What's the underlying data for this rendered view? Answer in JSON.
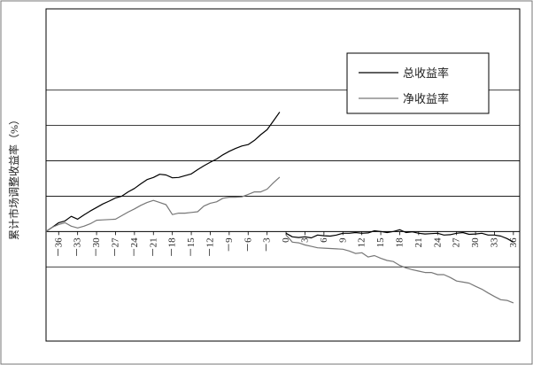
{
  "chart_data": {
    "type": "line",
    "title": "",
    "xlabel": "",
    "ylabel": "累计市场调整收益率（%）",
    "xlim": [
      -38,
      37
    ],
    "ylim": [
      -3.1,
      6.3
    ],
    "grid": "horizontal",
    "gridlines": [
      -1,
      1,
      2,
      3,
      4
    ],
    "legend_position": "top-right",
    "x_ticks": [
      -36,
      -33,
      -30,
      -27,
      -24,
      -21,
      -18,
      -15,
      -12,
      -9,
      -6,
      -3,
      0,
      3,
      6,
      9,
      12,
      15,
      18,
      21,
      24,
      27,
      30,
      33,
      36
    ],
    "x_tick_labels": [
      "－36",
      "－33",
      "－30",
      "－27",
      "－24",
      "－21",
      "－18",
      "－15",
      "－12",
      "－9",
      "－6",
      "－3",
      "0",
      "3",
      "6",
      "9",
      "12",
      "15",
      "18",
      "21",
      "24",
      "27",
      "30",
      "33",
      "36"
    ],
    "series": [
      {
        "name": "总收益率",
        "color": "#000000",
        "segments": [
          {
            "x": [
              -38,
              -37,
              -36,
              -35,
              -34,
              -33,
              -32,
              -31,
              -30,
              -29,
              -28,
              -27,
              -26,
              -25,
              -24,
              -23,
              -22,
              -21,
              -20,
              -19,
              -18,
              -17,
              -16,
              -15,
              -14,
              -13,
              -12,
              -11,
              -10,
              -9,
              -8,
              -7,
              -6,
              -5,
              -4,
              -3,
              -2,
              -1
            ],
            "y": [
              0.0,
              0.12,
              0.25,
              0.3,
              0.43,
              0.35,
              0.47,
              0.58,
              0.68,
              0.78,
              0.86,
              0.95,
              1.0,
              1.12,
              1.22,
              1.35,
              1.47,
              1.53,
              1.62,
              1.6,
              1.52,
              1.53,
              1.58,
              1.63,
              1.75,
              1.86,
              1.96,
              2.05,
              2.17,
              2.27,
              2.35,
              2.42,
              2.46,
              2.58,
              2.74,
              2.88,
              3.13,
              3.38
            ]
          },
          {
            "x": [
              0,
              1,
              2,
              3,
              4,
              5,
              6,
              7,
              8,
              9,
              10,
              11,
              12,
              13,
              14,
              15,
              16,
              17,
              18,
              19,
              20,
              21,
              22,
              23,
              24,
              25,
              26,
              27,
              28,
              29,
              30,
              31,
              32,
              33,
              34,
              35,
              36
            ],
            "y": [
              -0.05,
              -0.15,
              -0.17,
              -0.15,
              -0.18,
              -0.1,
              -0.12,
              -0.13,
              -0.1,
              -0.05,
              -0.05,
              -0.03,
              -0.05,
              -0.04,
              0.02,
              0.0,
              -0.03,
              0.0,
              0.05,
              -0.03,
              -0.01,
              -0.05,
              -0.07,
              -0.06,
              -0.05,
              -0.1,
              -0.09,
              -0.05,
              -0.03,
              -0.08,
              -0.07,
              -0.05,
              -0.1,
              -0.1,
              -0.13,
              -0.2,
              -0.3
            ]
          }
        ]
      },
      {
        "name": "净收益率",
        "color": "#777777",
        "segments": [
          {
            "x": [
              -38,
              -37,
              -36,
              -35,
              -34,
              -33,
              -32,
              -31,
              -30,
              -29,
              -28,
              -27,
              -26,
              -25,
              -24,
              -23,
              -22,
              -21,
              -20,
              -19,
              -18,
              -17,
              -16,
              -15,
              -14,
              -13,
              -12,
              -11,
              -10,
              -9,
              -8,
              -7,
              -6,
              -5,
              -4,
              -3,
              -2,
              -1
            ],
            "y": [
              0.0,
              0.12,
              0.2,
              0.25,
              0.15,
              0.1,
              0.15,
              0.22,
              0.32,
              0.33,
              0.34,
              0.35,
              0.45,
              0.55,
              0.64,
              0.74,
              0.82,
              0.88,
              0.82,
              0.76,
              0.48,
              0.52,
              0.52,
              0.54,
              0.56,
              0.72,
              0.8,
              0.84,
              0.94,
              0.97,
              0.97,
              0.98,
              1.05,
              1.12,
              1.12,
              1.2,
              1.38,
              1.54
            ]
          },
          {
            "x": [
              0,
              1,
              2,
              3,
              4,
              5,
              6,
              7,
              8,
              9,
              10,
              11,
              12,
              13,
              14,
              15,
              16,
              17,
              18,
              19,
              20,
              21,
              22,
              23,
              24,
              25,
              26,
              27,
              28,
              29,
              30,
              31,
              32,
              33,
              34,
              35,
              36
            ],
            "y": [
              -0.1,
              -0.3,
              -0.32,
              -0.38,
              -0.42,
              -0.46,
              -0.47,
              -0.48,
              -0.49,
              -0.5,
              -0.55,
              -0.62,
              -0.6,
              -0.72,
              -0.68,
              -0.76,
              -0.82,
              -0.85,
              -0.96,
              -1.03,
              -1.08,
              -1.12,
              -1.16,
              -1.16,
              -1.22,
              -1.22,
              -1.3,
              -1.4,
              -1.43,
              -1.46,
              -1.55,
              -1.63,
              -1.74,
              -1.84,
              -1.93,
              -1.95,
              -2.02
            ]
          }
        ]
      }
    ]
  }
}
